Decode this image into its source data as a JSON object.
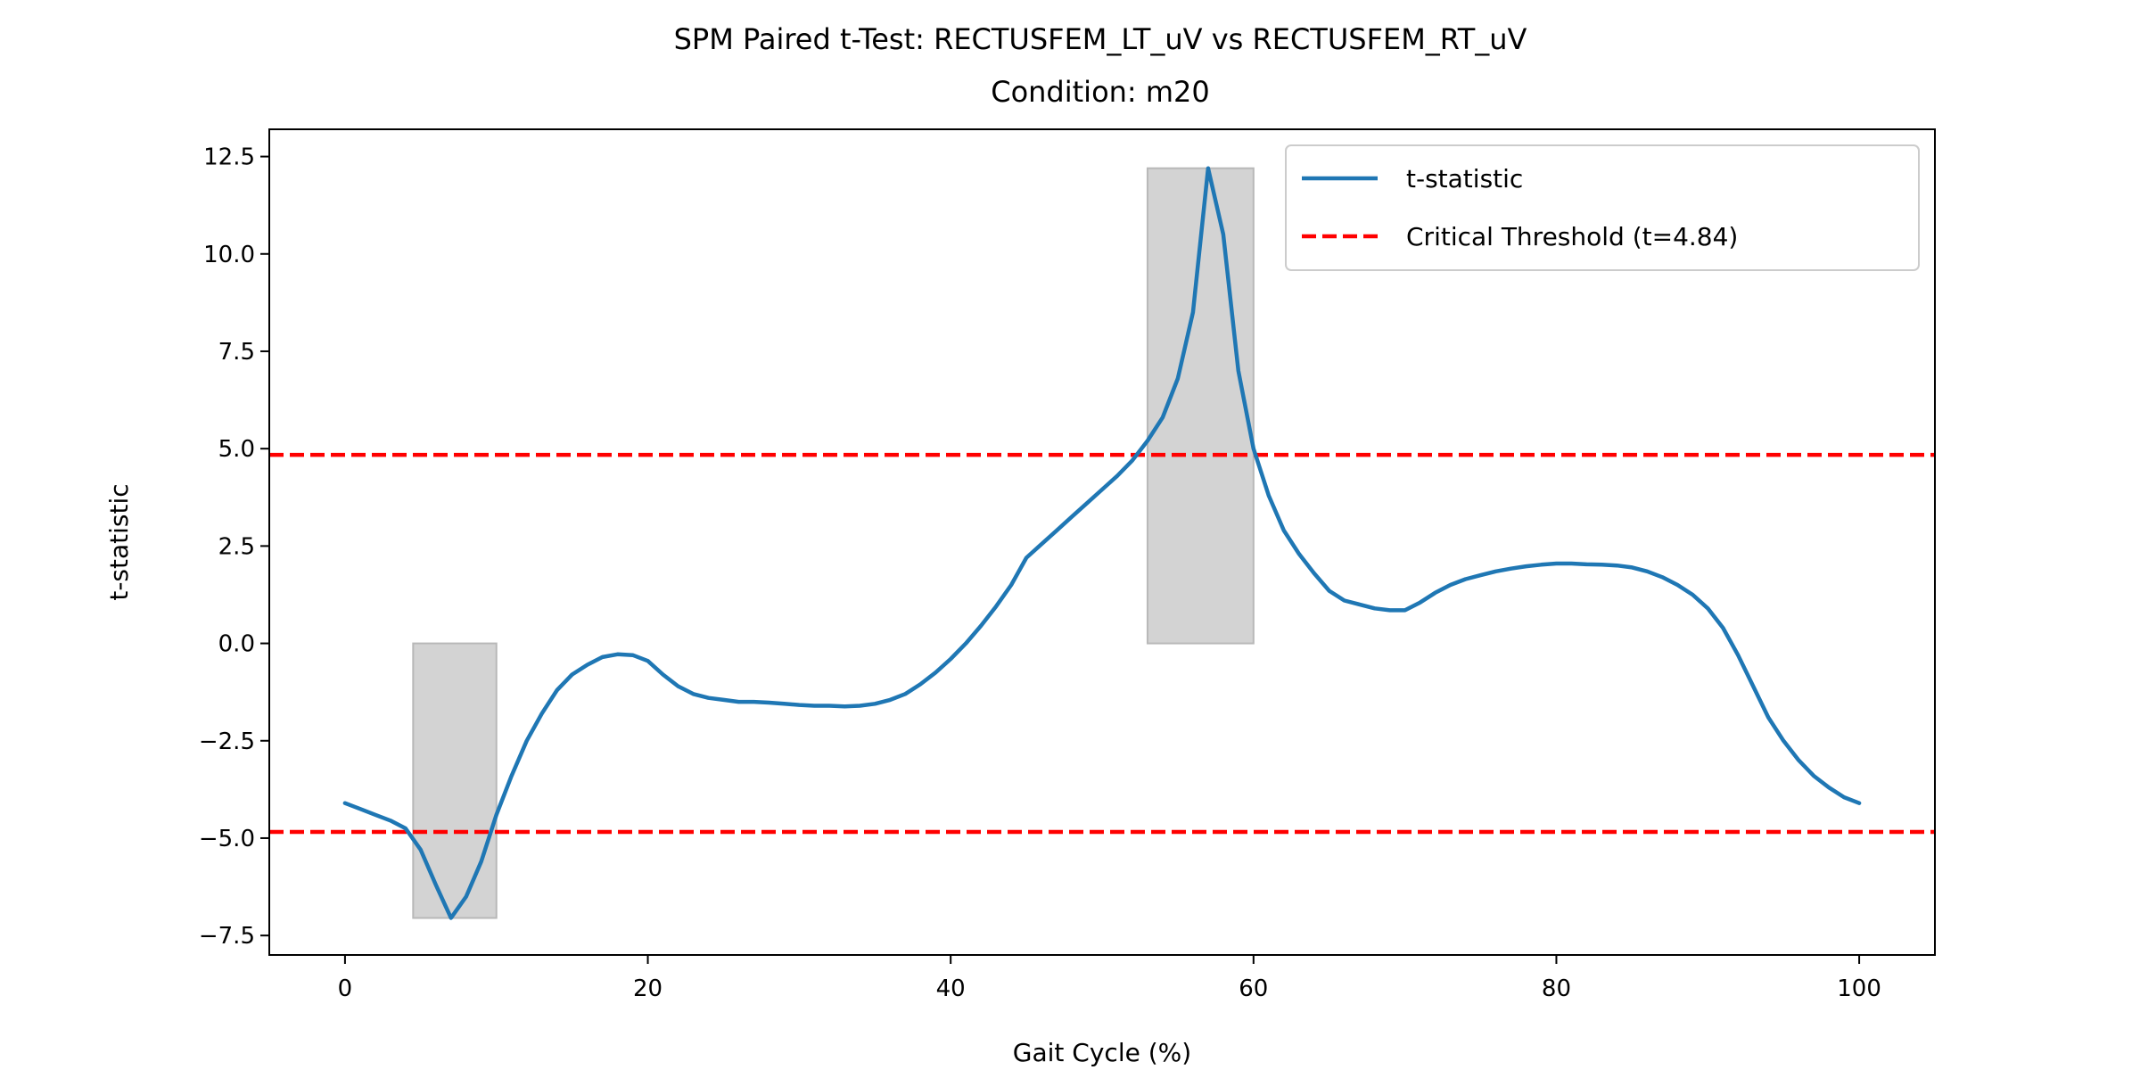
{
  "chart_data": {
    "type": "line",
    "title": "SPM Paired t-Test: RECTUSFEM_LT_uV vs RECTUSFEM_RT_uV",
    "subtitle": "Condition: m20",
    "xlabel": "Gait Cycle (%)",
    "ylabel": "t-statistic",
    "xlim": [
      -5,
      105
    ],
    "ylim": [
      -8.0,
      13.2
    ],
    "xticks": [
      0,
      20,
      40,
      60,
      80,
      100
    ],
    "xtick_labels": [
      "0",
      "20",
      "40",
      "60",
      "80",
      "100"
    ],
    "yticks": [
      -7.5,
      -5.0,
      -2.5,
      0.0,
      2.5,
      5.0,
      7.5,
      10.0,
      12.5
    ],
    "ytick_labels": [
      "−7.5",
      "−5.0",
      "−2.5",
      "0.0",
      "2.5",
      "5.0",
      "7.5",
      "10.0",
      "12.5"
    ],
    "grid": false,
    "legend_position": "top-right",
    "series": [
      {
        "name": "t-statistic",
        "color": "#1f77b4",
        "x": [
          0,
          1,
          2,
          3,
          4,
          5,
          6,
          7,
          8,
          9,
          10,
          11,
          12,
          13,
          14,
          15,
          16,
          17,
          18,
          19,
          20,
          21,
          22,
          23,
          24,
          25,
          26,
          27,
          28,
          29,
          30,
          31,
          32,
          33,
          34,
          35,
          36,
          37,
          38,
          39,
          40,
          41,
          42,
          43,
          44,
          45,
          46,
          47,
          48,
          49,
          50,
          51,
          52,
          53,
          54,
          55,
          56,
          57,
          58,
          59,
          60,
          61,
          62,
          63,
          64,
          65,
          66,
          67,
          68,
          69,
          70,
          71,
          72,
          73,
          74,
          75,
          76,
          77,
          78,
          79,
          80,
          81,
          82,
          83,
          84,
          85,
          86,
          87,
          88,
          89,
          90,
          91,
          92,
          93,
          94,
          95,
          96,
          97,
          98,
          99,
          100
        ],
        "y": [
          -4.1,
          -4.25,
          -4.4,
          -4.55,
          -4.75,
          -5.3,
          -6.2,
          -7.05,
          -6.5,
          -5.6,
          -4.4,
          -3.4,
          -2.5,
          -1.8,
          -1.2,
          -0.8,
          -0.55,
          -0.35,
          -0.28,
          -0.3,
          -0.45,
          -0.8,
          -1.1,
          -1.3,
          -1.4,
          -1.45,
          -1.5,
          -1.5,
          -1.52,
          -1.55,
          -1.58,
          -1.6,
          -1.6,
          -1.62,
          -1.6,
          -1.55,
          -1.45,
          -1.3,
          -1.05,
          -0.75,
          -0.4,
          0.0,
          0.45,
          0.95,
          1.5,
          2.2,
          2.55,
          2.9,
          3.25,
          3.6,
          3.95,
          4.3,
          4.7,
          5.2,
          5.8,
          6.8,
          8.5,
          12.2,
          10.5,
          7.0,
          5.0,
          3.8,
          2.9,
          2.3,
          1.8,
          1.35,
          1.1,
          1.0,
          0.9,
          0.85,
          0.85,
          1.05,
          1.3,
          1.5,
          1.65,
          1.75,
          1.85,
          1.92,
          1.98,
          2.02,
          2.05,
          2.05,
          2.03,
          2.02,
          2.0,
          1.95,
          1.85,
          1.7,
          1.5,
          1.25,
          0.9,
          0.4,
          -0.3,
          -1.1,
          -1.9,
          -2.5,
          -3.0,
          -3.4,
          -3.7,
          -3.95,
          -4.1
        ]
      },
      {
        "name": "Critical Threshold (t=4.84)",
        "color": "#ff0000",
        "style": "dashed",
        "thresholds": [
          4.84,
          -4.84
        ]
      }
    ],
    "shaded_regions": [
      {
        "x_start": 4.5,
        "x_end": 10.0,
        "y_from": 0.0,
        "y_to": -7.05
      },
      {
        "x_start": 53.0,
        "x_end": 60.0,
        "y_from": 0.0,
        "y_to": 12.2
      }
    ],
    "shade_color": "#d3d3d3"
  }
}
